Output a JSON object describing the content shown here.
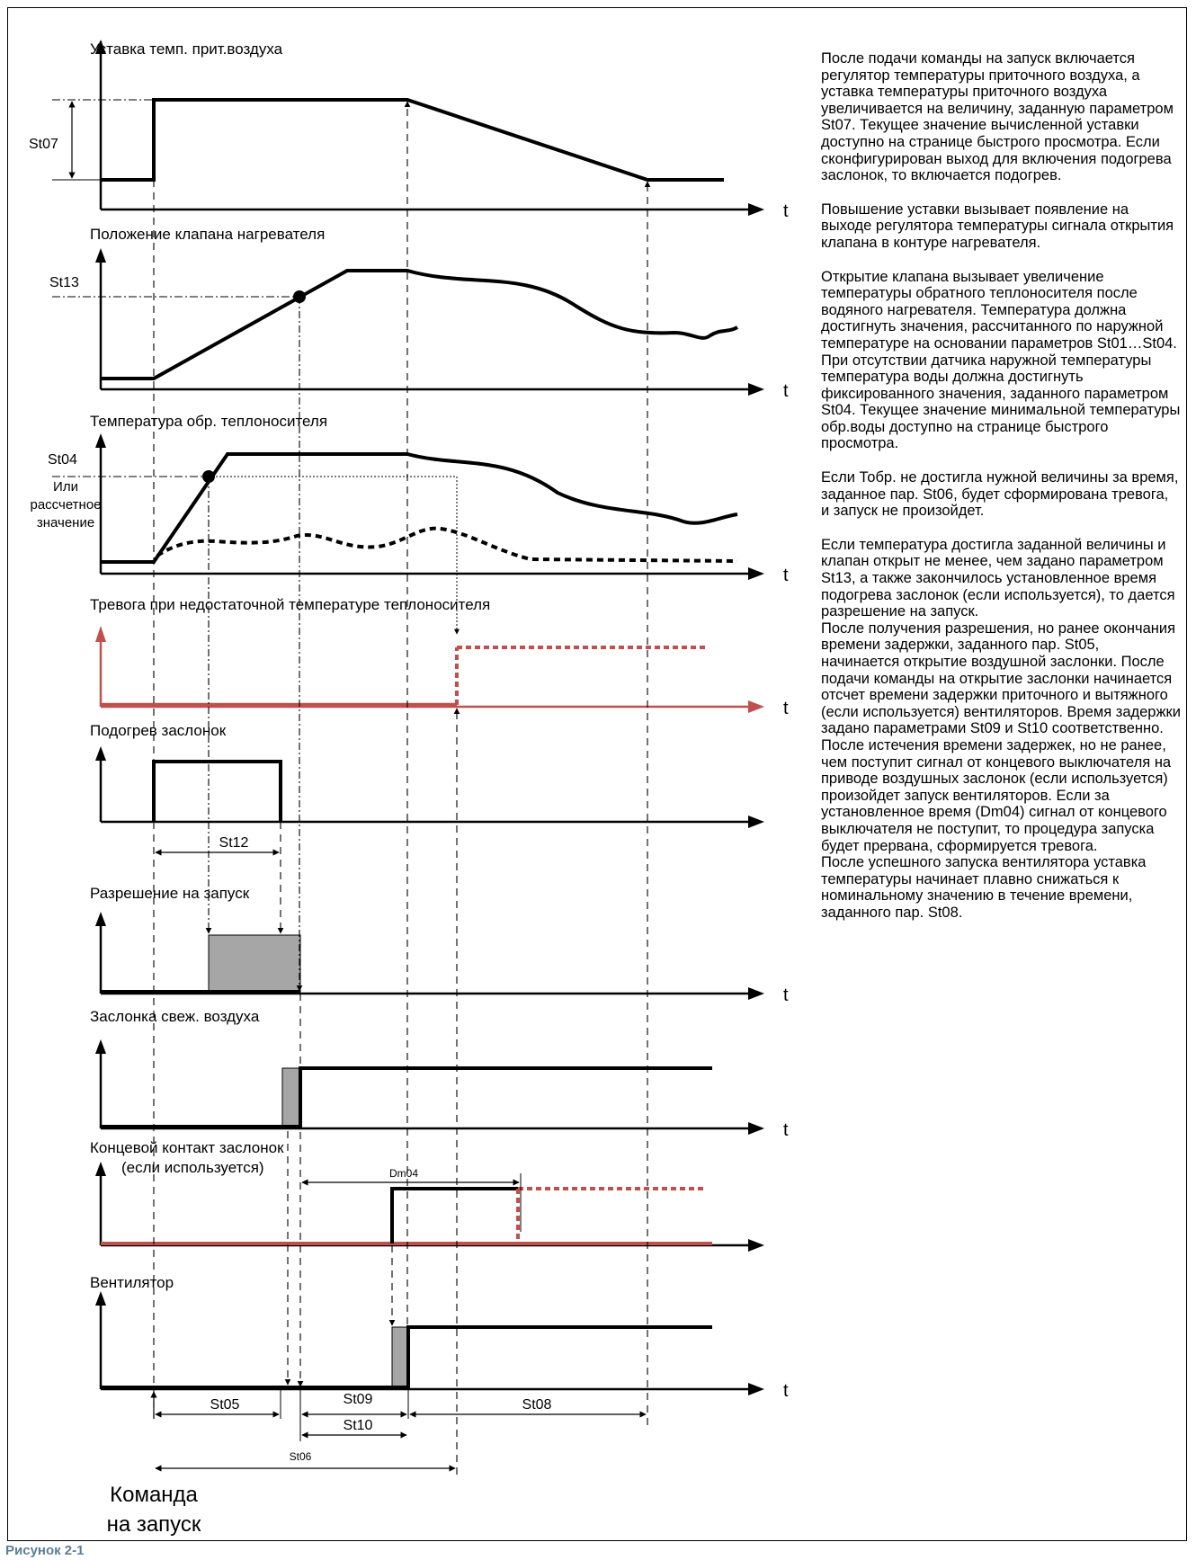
{
  "colors": {
    "line": "#000000",
    "alarm": "#c0504d",
    "fill": "#a6a6a6"
  },
  "panels": [
    {
      "title": "Уставка темп. прит.воздуха",
      "param": "St07"
    },
    {
      "title": "Положение клапана нагревателя",
      "param": "St13"
    },
    {
      "title": "Температура обр. теплоносителя",
      "param": "St04",
      "param_note_1": "Или",
      "param_note_2": "рассчетное",
      "param_note_3": "значение"
    },
    {
      "title": "Тревога при недостаточной температуре теплоносителя"
    },
    {
      "title": "Подогрев заслонок",
      "param": "St12"
    },
    {
      "title": "Разрешение на запуск"
    },
    {
      "title": "Заслонка свеж. воздуха"
    },
    {
      "title_1": "Концевой контакт заслонок",
      "title_2": "(если используется)",
      "param": "Dm04"
    },
    {
      "title": "Вентилятор"
    }
  ],
  "axis_label": "t",
  "intervals": {
    "st05": "St05",
    "st06": "St06",
    "st08": "St08",
    "st09": "St09",
    "st10": "St10"
  },
  "start_label_1": "Команда",
  "start_label_2": "на запуск",
  "figure_caption": "Рисунок 2-1",
  "notes": [
    "После подачи команды на запуск включается регулятор температуры приточного воздуха, а уставка температуры приточного воздуха увеличивается на величину, заданную параметром St07. Текущее значение вычисленной уставки доступно на странице быстрого просмотра. Если сконфигурирован выход для включения подогрева заслонок, то включается подогрев.",
    "Повышение уставки вызывает появление на выходе регулятора температуры сигнала открытия клапана в контуре нагревателя.",
    "Открытие клапана вызывает увеличение температуры обратного теплоносителя после водяного нагревателя. Температура должна достигнуть значения, рассчитанного по наружной температуре на основании параметров St01…St04. При отсутствии датчика наружной температуры температура воды должна достигнуть фиксированного значения, заданного параметром St04. Текущее значение минимальной температуры обр.воды доступно на странице быстрого просмотра.",
    "Если Тобр. не достигла нужной величины за время, заданное пар. St06,  будет сформирована тревога, и запуск не произойдет.",
    "Если температура достигла заданной величины и клапан открыт не менее, чем задано параметром St13, а также закончилось установленное время подогрева заслонок (если используется), то дается разрешение  на запуск.",
    "После получения разрешения, но ранее окончания времени задержки, заданного пар. St05, начинается открытие воздушной заслонки. После подачи команды на открытие заслонки начинается отсчет времени задержки приточного и вытяжного (если используется) вентиляторов. Время задержки задано параметрами St09 и St10 соответственно.",
    "После истечения времени задержек, но не ранее, чем поступит сигнал от концевого выключателя на приводе воздушных заслонок (если используется) произойдет запуск вентиляторов. Если за установленное время (Dm04) сигнал от концевого выключателя не поступит, то процедура запуска будет прервана, сформируется тревога.",
    "После успешного запуска вентилятора уставка температуры начинает плавно снижаться к номинальному значению в течение времени, заданного пар. St08."
  ]
}
